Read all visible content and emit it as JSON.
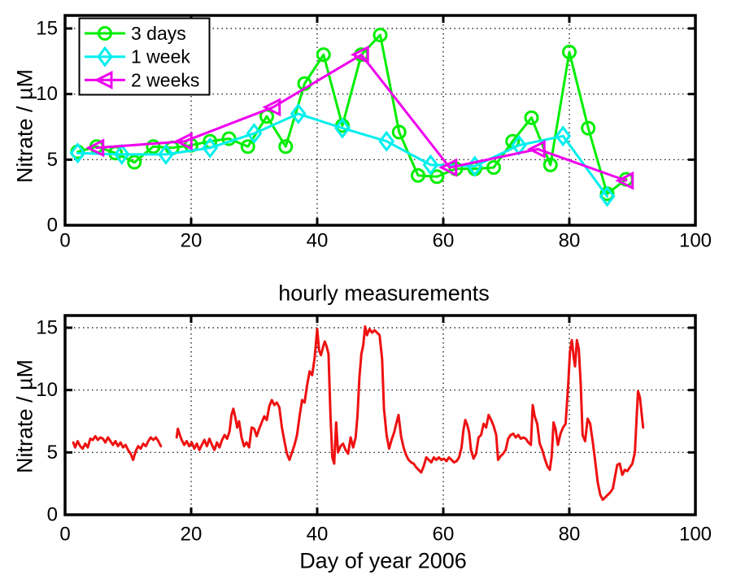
{
  "figure": {
    "background": "#ffffff"
  },
  "chart_data": [
    {
      "type": "line",
      "title": "",
      "xlabel": "",
      "ylabel": "Nitrate / µM",
      "xlim": [
        0,
        100
      ],
      "ylim": [
        0,
        16
      ],
      "xticks": [
        0,
        20,
        40,
        60,
        80,
        100
      ],
      "yticks": [
        0,
        5,
        10,
        15
      ],
      "grid": true,
      "legend": {
        "position": "upper-left",
        "entries": [
          "3 days",
          "1 week",
          "2 weeks"
        ]
      },
      "series": [
        {
          "name": "3 days",
          "color": "#00ee00",
          "marker": "circle",
          "x": [
            2,
            5,
            8,
            11,
            14,
            17,
            20,
            23,
            26,
            29,
            32,
            35,
            38,
            41,
            44,
            47,
            50,
            53,
            56,
            59,
            62,
            65,
            68,
            71,
            74,
            77,
            80,
            83,
            86,
            89
          ],
          "values": [
            5.6,
            6.0,
            5.5,
            4.8,
            6.0,
            5.9,
            6.1,
            6.4,
            6.6,
            6.0,
            8.3,
            6.0,
            10.8,
            13.0,
            7.6,
            13.0,
            14.5,
            7.1,
            3.8,
            3.7,
            4.3,
            4.3,
            4.4,
            6.4,
            8.2,
            4.6,
            13.2,
            7.4,
            2.4,
            3.5
          ]
        },
        {
          "name": "1 week",
          "color": "#00eeee",
          "marker": "diamond",
          "x": [
            2,
            9,
            16,
            23,
            30,
            37,
            44,
            51,
            58,
            65,
            72,
            79,
            86
          ],
          "values": [
            5.5,
            5.4,
            5.4,
            5.9,
            7.0,
            8.5,
            7.4,
            6.4,
            4.6,
            4.5,
            6.1,
            6.8,
            2.2
          ]
        },
        {
          "name": "2 weeks",
          "color": "#ee00ee",
          "marker": "triangle-left",
          "x": [
            5,
            19,
            33,
            47,
            61,
            75,
            89
          ],
          "values": [
            5.9,
            6.4,
            9.0,
            13.0,
            4.4,
            5.8,
            3.4
          ]
        }
      ]
    },
    {
      "type": "line",
      "title": "hourly measurements",
      "xlabel": "Day of year 2006",
      "ylabel": "Nitrate / µM",
      "xlim": [
        0,
        100
      ],
      "ylim": [
        0,
        16
      ],
      "xticks": [
        0,
        20,
        40,
        60,
        80,
        100
      ],
      "yticks": [
        0,
        5,
        10,
        15
      ],
      "grid": true,
      "series": [
        {
          "name": "hourly",
          "color": "#ee1111",
          "marker": "none",
          "segments": [
            {
              "x": [
                1.3,
                1.6,
                2.0,
                2.4,
                2.8,
                3.2,
                3.6,
                4.0,
                4.4,
                4.8,
                5.2,
                5.6,
                6.0,
                6.4,
                6.8,
                7.2,
                7.6,
                8.0,
                8.4,
                8.8,
                9.2,
                9.6,
                10.0,
                10.4,
                10.8,
                11.2,
                11.6,
                12.0,
                12.4,
                12.8,
                13.2,
                13.6,
                14.0,
                14.4,
                14.8,
                15.2
              ],
              "values": [
                5.8,
                5.4,
                5.9,
                5.5,
                5.3,
                5.7,
                5.4,
                6.1,
                6.0,
                6.3,
                6.0,
                6.2,
                6.1,
                5.8,
                6.2,
                5.9,
                5.6,
                5.9,
                5.5,
                5.8,
                5.4,
                5.6,
                5.2,
                4.9,
                4.4,
                5.1,
                5.5,
                5.3,
                5.7,
                5.5,
                5.9,
                6.2,
                6.0,
                6.2,
                5.9,
                5.5
              ]
            },
            {
              "x": [
                17.7,
                17.9,
                18.2,
                18.5,
                18.9,
                19.3,
                19.7,
                20.1,
                20.5,
                20.9,
                21.3,
                21.7,
                22.1,
                22.5,
                22.9,
                23.3,
                23.7,
                24.1,
                24.5,
                24.9,
                25.3,
                25.7,
                26.1,
                26.4,
                26.7,
                27.0,
                27.3,
                27.6,
                28.0,
                28.4,
                28.8,
                29.2,
                29.6,
                30.0,
                30.4,
                30.8,
                31.2,
                31.6,
                32.0,
                32.4,
                32.8,
                33.2,
                33.6,
                34.0,
                34.4,
                34.8,
                35.2,
                35.6,
                36.0,
                36.4,
                36.8,
                37.2,
                37.6,
                38.0,
                38.4,
                38.8,
                39.2,
                39.6,
                40.0,
                40.3,
                40.6,
                40.9,
                41.2,
                41.5,
                41.8,
                42.1,
                42.4,
                42.7,
                43.0,
                43.3,
                43.7,
                44.1,
                44.5,
                44.9,
                45.3,
                45.7,
                46.1,
                46.4,
                46.7,
                47.0,
                47.3,
                47.6,
                47.9,
                48.3,
                48.7,
                49.1,
                49.5,
                49.9,
                50.3,
                50.6,
                51.0,
                51.4,
                51.8,
                52.2,
                52.6,
                52.9,
                53.3,
                53.7,
                54.1,
                54.5,
                54.9,
                55.3,
                55.7,
                56.1,
                56.5,
                56.9,
                57.3,
                57.7,
                58.1,
                58.5,
                58.9,
                59.3,
                59.7,
                60.1,
                60.5,
                60.9,
                61.3,
                61.7,
                62.1,
                62.5,
                62.9,
                63.2,
                63.5,
                63.8,
                64.1,
                64.4,
                64.8,
                65.2,
                65.6,
                66.0,
                66.4,
                66.8,
                67.2,
                67.6,
                68.0,
                68.4,
                68.7,
                69.1,
                69.5,
                69.9,
                70.3,
                70.7,
                71.1,
                71.5,
                71.9,
                72.3,
                72.7,
                73.1,
                73.5,
                73.9,
                74.2,
                74.5,
                74.9,
                75.3,
                75.7,
                76.1,
                76.5,
                76.9,
                77.2,
                77.5,
                77.8,
                78.2,
                78.6,
                79.0,
                79.4,
                79.8,
                80.1,
                80.4,
                80.7,
                80.9,
                81.2,
                81.5,
                81.8,
                82.1,
                82.5,
                82.9,
                83.3,
                83.7,
                84.1,
                84.5,
                84.9,
                85.3,
                85.7,
                86.1,
                86.5,
                86.9,
                87.3,
                87.6,
                88.0,
                88.4,
                88.8,
                89.2,
                89.6,
                90.0,
                90.4,
                90.7,
                90.9,
                91.2,
                91.5,
                91.7
              ],
              "values": [
                6.2,
                6.9,
                6.4,
                6.0,
                5.6,
                5.9,
                5.5,
                5.8,
                5.3,
                5.7,
                5.2,
                5.6,
                6.0,
                5.5,
                6.1,
                5.6,
                5.2,
                5.8,
                5.4,
                6.0,
                6.4,
                6.1,
                6.7,
                8.0,
                8.5,
                7.8,
                7.0,
                7.5,
                6.2,
                5.5,
                5.8,
                5.4,
                7.0,
                6.9,
                6.3,
                6.9,
                7.4,
                7.9,
                7.6,
                8.7,
                9.2,
                8.8,
                9.0,
                8.6,
                7.0,
                5.9,
                4.9,
                4.4,
                5.0,
                5.6,
                6.4,
                7.9,
                9.2,
                9.0,
                10.4,
                11.5,
                11.2,
                12.6,
                14.9,
                13.2,
                12.8,
                13.4,
                13.9,
                13.5,
                12.9,
                8.0,
                4.6,
                4.1,
                7.4,
                5.0,
                5.5,
                5.7,
                5.2,
                4.9,
                6.2,
                5.4,
                6.2,
                8.0,
                11.0,
                12.9,
                13.6,
                15.1,
                14.4,
                14.9,
                14.6,
                14.8,
                14.6,
                14.4,
                12.5,
                8.5,
                6.4,
                5.3,
                6.0,
                6.6,
                7.4,
                8.0,
                6.3,
                5.4,
                4.8,
                4.4,
                4.2,
                4.1,
                3.8,
                3.6,
                3.4,
                3.9,
                4.6,
                4.4,
                4.2,
                4.6,
                4.4,
                4.6,
                4.4,
                4.5,
                4.3,
                4.6,
                4.4,
                4.2,
                4.3,
                4.6,
                5.4,
                6.8,
                7.6,
                7.2,
                6.6,
                5.2,
                4.5,
                4.9,
                6.2,
                6.4,
                7.3,
                7.0,
                8.0,
                7.6,
                7.1,
                6.4,
                4.4,
                4.7,
                4.9,
                5.2,
                6.1,
                6.4,
                6.5,
                6.2,
                6.4,
                6.1,
                6.2,
                6.1,
                5.8,
                5.6,
                8.8,
                7.9,
                7.3,
                5.7,
                5.2,
                4.5,
                3.9,
                3.6,
                4.7,
                7.4,
                6.9,
                5.6,
                6.5,
                7.0,
                7.3,
                10.3,
                13.1,
                14.0,
                12.6,
                11.9,
                14.0,
                13.3,
                10.5,
                6.4,
                5.9,
                7.7,
                7.3,
                5.9,
                4.3,
                2.6,
                1.6,
                1.2,
                1.4,
                1.6,
                1.8,
                2.1,
                3.2,
                4.0,
                4.1,
                3.2,
                3.6,
                3.5,
                3.8,
                4.1,
                5.0,
                8.0,
                9.9,
                9.4,
                8.0,
                7.0
              ]
            }
          ]
        }
      ]
    }
  ]
}
